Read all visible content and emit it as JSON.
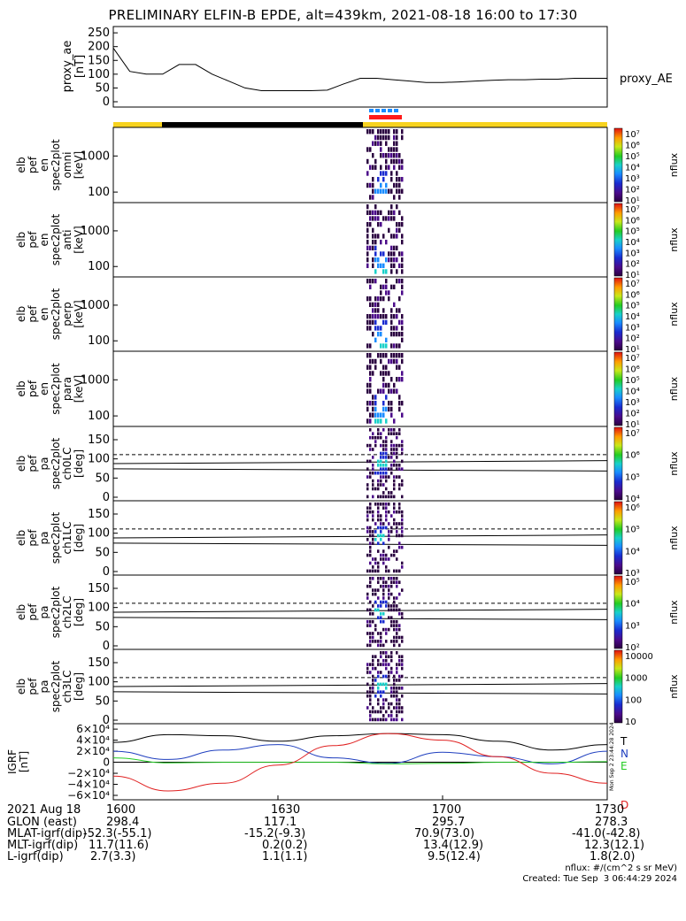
{
  "title": "PRELIMINARY ELFIN-B EPDE, alt=439km, 2021-08-18 16:00 to 17:30",
  "colors": {
    "daylight_bar": "#f7d31f",
    "eclipse_bar": "#000000",
    "science_blue": "#1a8cff",
    "science_red": "#ff1a1a",
    "trace_T": "#000000",
    "trace_N": "#1f3fbf",
    "trace_E": "#22cc22",
    "trace_D": "#e02020"
  },
  "panels": [
    {
      "id": "proxy_ae",
      "ylabel": [
        "proxy_ae",
        "[nT]"
      ],
      "right_label": "proxy_AE",
      "ticks": [
        "250",
        "200",
        "150",
        "100",
        "50",
        "0"
      ]
    },
    {
      "id": "omni",
      "ylabel": [
        "elb",
        "pef",
        "en",
        "spec2plot",
        "omni",
        "[keV]"
      ],
      "ticks": [
        "1000",
        "100"
      ],
      "cb_label": "nflux",
      "cb_ticks": [
        "10⁷",
        "10⁶",
        "10⁵",
        "10⁴",
        "10³",
        "10²",
        "10¹"
      ]
    },
    {
      "id": "anti",
      "ylabel": [
        "elb",
        "pef",
        "en",
        "spec2plot",
        "anti",
        "[keV]"
      ],
      "ticks": [
        "1000",
        "100"
      ],
      "cb_label": "nflux",
      "cb_ticks": [
        "10⁷",
        "10⁶",
        "10⁵",
        "10⁴",
        "10³",
        "10²",
        "10¹"
      ]
    },
    {
      "id": "perp",
      "ylabel": [
        "elb",
        "pef",
        "en",
        "spec2plot",
        "perp",
        "[keV]"
      ],
      "ticks": [
        "1000",
        "100"
      ],
      "cb_label": "nflux",
      "cb_ticks": [
        "10⁷",
        "10⁶",
        "10⁵",
        "10⁴",
        "10³",
        "10²",
        "10¹"
      ]
    },
    {
      "id": "para",
      "ylabel": [
        "elb",
        "pef",
        "en",
        "spec2plot",
        "para",
        "[keV]"
      ],
      "ticks": [
        "1000",
        "100"
      ],
      "cb_label": "nflux",
      "cb_ticks": [
        "10⁷",
        "10⁶",
        "10⁵",
        "10⁴",
        "10³",
        "10²",
        "10¹"
      ]
    },
    {
      "id": "ch0LC",
      "ylabel": [
        "elb",
        "pef",
        "pa",
        "spec2plot",
        "ch0LC",
        "[deg]"
      ],
      "ticks": [
        "150",
        "100",
        "50",
        "0"
      ],
      "cb_label": "nflux",
      "cb_ticks": [
        "10⁷",
        "10⁶",
        "10⁵",
        "10⁴"
      ]
    },
    {
      "id": "ch1LC",
      "ylabel": [
        "elb",
        "pef",
        "pa",
        "spec2plot",
        "ch1LC",
        "[deg]"
      ],
      "ticks": [
        "150",
        "100",
        "50",
        "0"
      ],
      "cb_label": "nflux",
      "cb_ticks": [
        "10⁶",
        "10⁵",
        "10⁴",
        "10³"
      ]
    },
    {
      "id": "ch2LC",
      "ylabel": [
        "elb",
        "pef",
        "pa",
        "spec2plot",
        "ch2LC",
        "[deg]"
      ],
      "ticks": [
        "150",
        "100",
        "50",
        "0"
      ],
      "cb_label": "nflux",
      "cb_ticks": [
        "10⁵",
        "10⁴",
        "10³",
        "10²"
      ]
    },
    {
      "id": "ch3LC",
      "ylabel": [
        "elb",
        "pef",
        "pa",
        "spec2plot",
        "ch3LC",
        "[deg]"
      ],
      "ticks": [
        "150",
        "100",
        "50",
        "0"
      ],
      "cb_label": "nflux",
      "cb_ticks": [
        "10000",
        "1000",
        "100",
        "10"
      ]
    },
    {
      "id": "igrf",
      "ylabel": [
        "IGRF",
        "[nT]"
      ],
      "ticks": [
        "6×10⁴",
        "4×10⁴",
        "2×10⁴",
        "0",
        "−2×10⁴",
        "−4×10⁴",
        "−6×10⁴"
      ],
      "legend": [
        "T",
        "N",
        "E",
        "D"
      ],
      "side_text": "Mon Sep  2 23:44:28 2024"
    }
  ],
  "chart_data": [
    {
      "type": "line",
      "panel": "proxy_ae",
      "series": [
        {
          "name": "proxy_AE",
          "x": [
            0,
            3,
            6,
            9,
            12,
            15,
            18,
            21,
            24,
            27,
            30,
            33,
            36,
            39,
            42,
            45,
            48,
            51,
            54,
            57,
            60,
            63,
            66,
            69,
            72,
            75,
            78,
            81,
            84,
            87,
            90
          ],
          "values": [
            195,
            110,
            100,
            100,
            135,
            135,
            100,
            75,
            50,
            40,
            40,
            40,
            40,
            42,
            65,
            85,
            85,
            80,
            75,
            70,
            70,
            72,
            75,
            78,
            80,
            80,
            82,
            82,
            85,
            85,
            85
          ]
        }
      ],
      "ylim": [
        0,
        260
      ],
      "xlim": [
        0,
        90
      ]
    },
    {
      "type": "line",
      "panel": "igrf",
      "x": [
        0,
        10,
        20,
        30,
        40,
        50,
        60,
        70,
        80,
        90
      ],
      "series": [
        {
          "name": "T",
          "values": [
            36000,
            50000,
            48000,
            38000,
            48000,
            52000,
            50000,
            38000,
            22000,
            32000
          ]
        },
        {
          "name": "N",
          "values": [
            20000,
            5000,
            22000,
            32000,
            8000,
            -2000,
            18000,
            10000,
            -3000,
            20000
          ]
        },
        {
          "name": "E",
          "values": [
            8000,
            -1000,
            0,
            0,
            0,
            -3000,
            -2000,
            0,
            0,
            1000
          ]
        },
        {
          "name": "D",
          "values": [
            -25000,
            -52000,
            -38000,
            -5000,
            30000,
            52000,
            40000,
            10000,
            -20000,
            -38000
          ]
        }
      ],
      "ylim": [
        -60000,
        65000
      ],
      "xlim": [
        0,
        90
      ]
    }
  ],
  "xaxis": {
    "label": "2021 Aug 18",
    "ticks": [
      "1600",
      "1630",
      "1700",
      "1730"
    ]
  },
  "footer": [
    {
      "label": "GLON (east)",
      "values": [
        "298.4",
        "117.1",
        "295.7",
        "278.3"
      ]
    },
    {
      "label": "MLAT-igrf(dip)",
      "values": [
        "-52.3(-55.1)",
        "-15.2(-9.3)",
        "70.9(73.0)",
        "-41.0(-42.8)"
      ]
    },
    {
      "label": "MLT-igrf(dip)",
      "values": [
        "11.7(11.6)",
        "0.2(0.2)",
        "13.4(12.9)",
        "12.3(12.1)"
      ]
    },
    {
      "label": "L-igrf(dip)",
      "values": [
        "2.7(3.3)",
        "1.1(1.1)",
        "9.5(12.4)",
        "1.8(2.0)"
      ]
    }
  ],
  "footnote_units": "nflux: #/(cm^2 s sr MeV)",
  "footnote_created": "Created: Tue Sep  3 06:44:29 2024"
}
